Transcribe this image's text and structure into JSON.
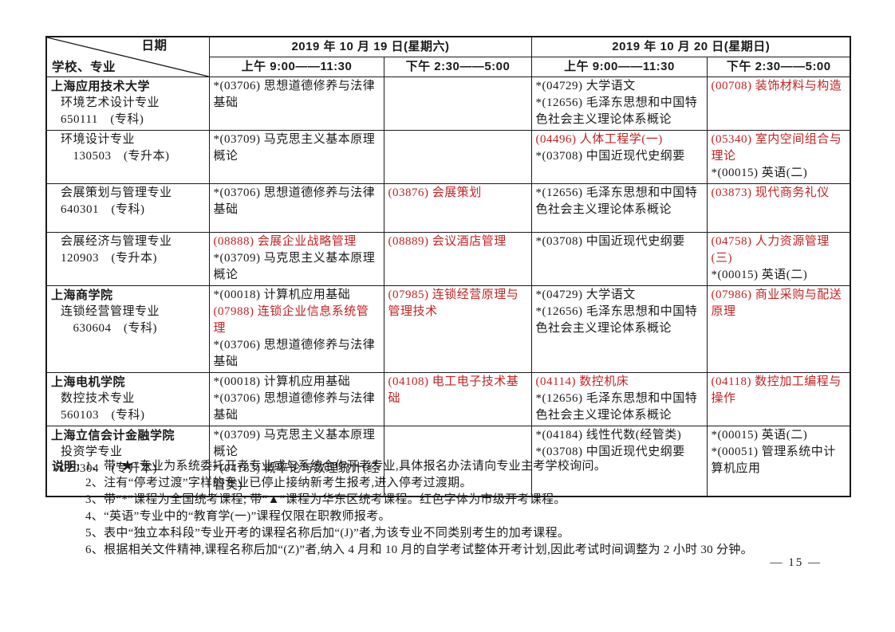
{
  "colors": {
    "course_red": "#c32222",
    "text_black": "#1a1a1a"
  },
  "page": {
    "number": "— 15 —"
  },
  "table": {
    "corner": {
      "top_label": "日期",
      "bottom_label": "学校、专业"
    },
    "days": [
      {
        "date": "2019 年 10 月 19 日(星期六)",
        "am": "上午 9:00——11:30",
        "pm": "下午 2:30——5:00"
      },
      {
        "date": "2019 年 10 月 20 日(星期日)",
        "am": "上午 9:00——11:30",
        "pm": "下午 2:30——5:00"
      }
    ],
    "rows": [
      {
        "school": "上海应用技术大学",
        "major": "环境艺术设计专业",
        "code": "650111　(专科)",
        "cells": [
          [
            {
              "t": "*(03706) 思想道德修养与法律基础",
              "r": false
            }
          ],
          [],
          [
            {
              "t": "*(04729) 大学语文",
              "r": false
            },
            {
              "t": "*(12656) 毛泽东思想和中国特色社会主义理论体系概论",
              "r": false
            }
          ],
          [
            {
              "t": "(00708) 装饰材料与构造",
              "r": true
            }
          ]
        ]
      },
      {
        "school": "",
        "major": "环境设计专业",
        "code": "　130503　(专升本)",
        "cells": [
          [
            {
              "t": "*(03709) 马克思主义基本原理概论",
              "r": false
            }
          ],
          [],
          [
            {
              "t": "(04496) 人体工程学(一)",
              "r": true
            },
            {
              "t": "*(03708) 中国近现代史纲要",
              "r": false
            }
          ],
          [
            {
              "t": "(05340) 室内空间组合与理论",
              "r": true
            },
            {
              "t": "*(00015) 英语(二)",
              "r": false
            }
          ]
        ]
      },
      {
        "school": "",
        "major": "会展策划与管理专业",
        "code": "640301　(专科)",
        "cells": [
          [
            {
              "t": "*(03706) 思想道德修养与法律基础",
              "r": false
            }
          ],
          [
            {
              "t": "(03876) 会展策划",
              "r": true
            }
          ],
          [
            {
              "t": "*(12656) 毛泽东思想和中国特色社会主义理论体系概论",
              "r": false
            }
          ],
          [
            {
              "t": "(03873) 现代商务礼仪",
              "r": true
            }
          ]
        ]
      },
      {
        "school": "",
        "major": "会展经济与管理专业",
        "code": "120903　(专升本)",
        "cells": [
          [
            {
              "t": "(08888) 会展企业战略管理",
              "r": true
            },
            {
              "t": "*(03709) 马克思主义基本原理概论",
              "r": false
            }
          ],
          [
            {
              "t": "(08889) 会议酒店管理",
              "r": true
            }
          ],
          [
            {
              "t": "*(03708) 中国近现代史纲要",
              "r": false
            }
          ],
          [
            {
              "t": "(04758) 人力资源管理(三)",
              "r": true
            },
            {
              "t": "*(00015) 英语(二)",
              "r": false
            }
          ]
        ]
      },
      {
        "school": "上海商学院",
        "major": "连锁经营管理专业",
        "code": "　630604　(专科)",
        "cells": [
          [
            {
              "t": "*(00018) 计算机应用基础",
              "r": false
            },
            {
              "t": "(07988) 连锁企业信息系统管理",
              "r": true
            },
            {
              "t": "*(03706) 思想道德修养与法律基础",
              "r": false
            }
          ],
          [
            {
              "t": "(07985) 连锁经营原理与管理技术",
              "r": true
            }
          ],
          [
            {
              "t": "*(04729) 大学语文",
              "r": false
            },
            {
              "t": "*(12656) 毛泽东思想和中国特色社会主义理论体系概论",
              "r": false
            }
          ],
          [
            {
              "t": "(07986) 商业采购与配送原理",
              "r": true
            }
          ]
        ]
      },
      {
        "school": "上海电机学院",
        "major": "数控技术专业",
        "code": "560103　(专科)",
        "cells": [
          [
            {
              "t": "*(00018) 计算机应用基础",
              "r": false
            },
            {
              "t": "*(03706) 思想道德修养与法律基础",
              "r": false
            }
          ],
          [
            {
              "t": "(04108) 电工电子技术基础",
              "r": true
            }
          ],
          [
            {
              "t": "(04114) 数控机床",
              "r": true
            },
            {
              "t": "*(12656) 毛泽东思想和中国特色社会主义理论体系概论",
              "r": false
            }
          ],
          [
            {
              "t": "(04118) 数控加工编程与操作",
              "r": true
            }
          ]
        ]
      },
      {
        "school": "上海立信会计金融学院",
        "major": "投资学专业",
        "code": "020304　(专升本)",
        "cells": [
          [
            {
              "t": "*(03709) 马克思主义基本原理概论",
              "r": false
            },
            {
              "t": "*(04183) 概率论与数理统计(经管类)",
              "r": false
            }
          ],
          [],
          [
            {
              "t": "*(04184) 线性代数(经管类)",
              "r": false
            },
            {
              "t": "*(03708) 中国近现代史纲要",
              "r": false
            }
          ],
          [
            {
              "t": "*(00015) 英语(二)",
              "r": false
            },
            {
              "t": "*(00051) 管理系统中计算机应用",
              "r": false
            }
          ]
        ]
      }
    ]
  },
  "notes": {
    "label": "说明:",
    "items": [
      "1、带“★”专业为系统委托开考专业或与系统合作开考专业,具体报名办法请向专业主考学校询问。",
      "2、注有“停考过渡”字样的专业已停止接纳新考生报考,进入停考过渡期。",
      "3、带“*”课程为全国统考课程; 带“▲”课程为华东区统考课程。红色字体为市级开考课程。",
      "4、“英语”专业中的“教育学(一)”课程仅限在职教师报考。",
      "5、表中“独立本科段”专业开考的课程名称后加“(J)”者,为该专业不同类别考生的加考课程。",
      "6、根据相关文件精神,课程名称后加“(Z)”者,纳入 4 月和 10 月的自学考试整体开考计划,因此考试时间调整为 2 小时 30 分钟。"
    ]
  }
}
